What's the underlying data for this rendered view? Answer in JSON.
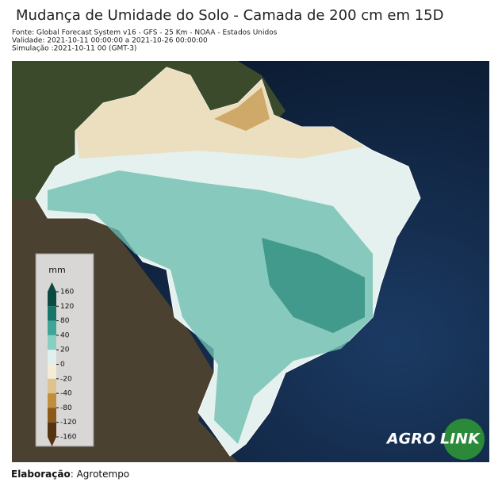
{
  "header": {
    "title": "Mudança de Umidade do Solo - Camada de 200 cm em 15D",
    "source": "Fonte: Global Forecast System v16 - GFS - 25 Km - NOAA - Estados Unidos",
    "validity": "Validade: 2021-10-11 00:00:00 a 2021-10-26 00:00:00",
    "simulation": "Simulação :2021-10-11 00 (GMT-3)"
  },
  "legend": {
    "unit": "mm",
    "ticks": [
      160,
      120,
      80,
      40,
      20,
      0,
      -20,
      -40,
      -80,
      -120,
      -160
    ],
    "colors": [
      "#0b4a40",
      "#17756a",
      "#3fa596",
      "#86cfc1",
      "#dff0ee",
      "#f4ecd6",
      "#dfc38e",
      "#bf8f3e",
      "#8b5a1a",
      "#553310"
    ]
  },
  "logo": {
    "left": "AGRO",
    "right": "LINK"
  },
  "footer": {
    "label": "Elaboração",
    "text": ": Agrotempo"
  }
}
